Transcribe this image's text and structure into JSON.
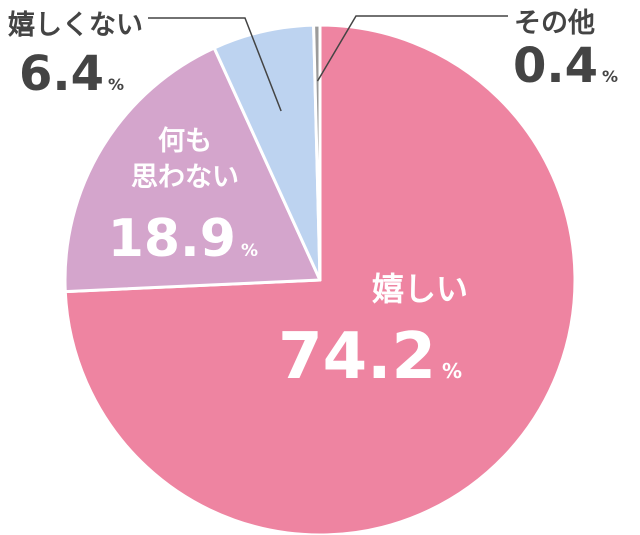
{
  "chart_data": {
    "type": "pie",
    "title": "",
    "slices": [
      {
        "label": "嬉しい",
        "value": 74.2,
        "display_value": "74.2",
        "color": "#ee84a1",
        "label_color": "#ffffff"
      },
      {
        "label": "何も思わない",
        "label_lines": [
          "何も",
          "思わない"
        ],
        "value": 18.9,
        "display_value": "18.9",
        "color": "#d4a5cc",
        "label_color": "#ffffff"
      },
      {
        "label": "嬉しくない",
        "value": 6.4,
        "display_value": "6.4",
        "color": "#bdd3f0",
        "label_color": "#444444"
      },
      {
        "label": "その他",
        "value": 0.4,
        "display_value": "0.4",
        "color": "#9b9b9b",
        "label_color": "#444444"
      }
    ],
    "unit": "%",
    "start_angle_deg": 0,
    "direction": "clockwise",
    "legend": "none"
  }
}
